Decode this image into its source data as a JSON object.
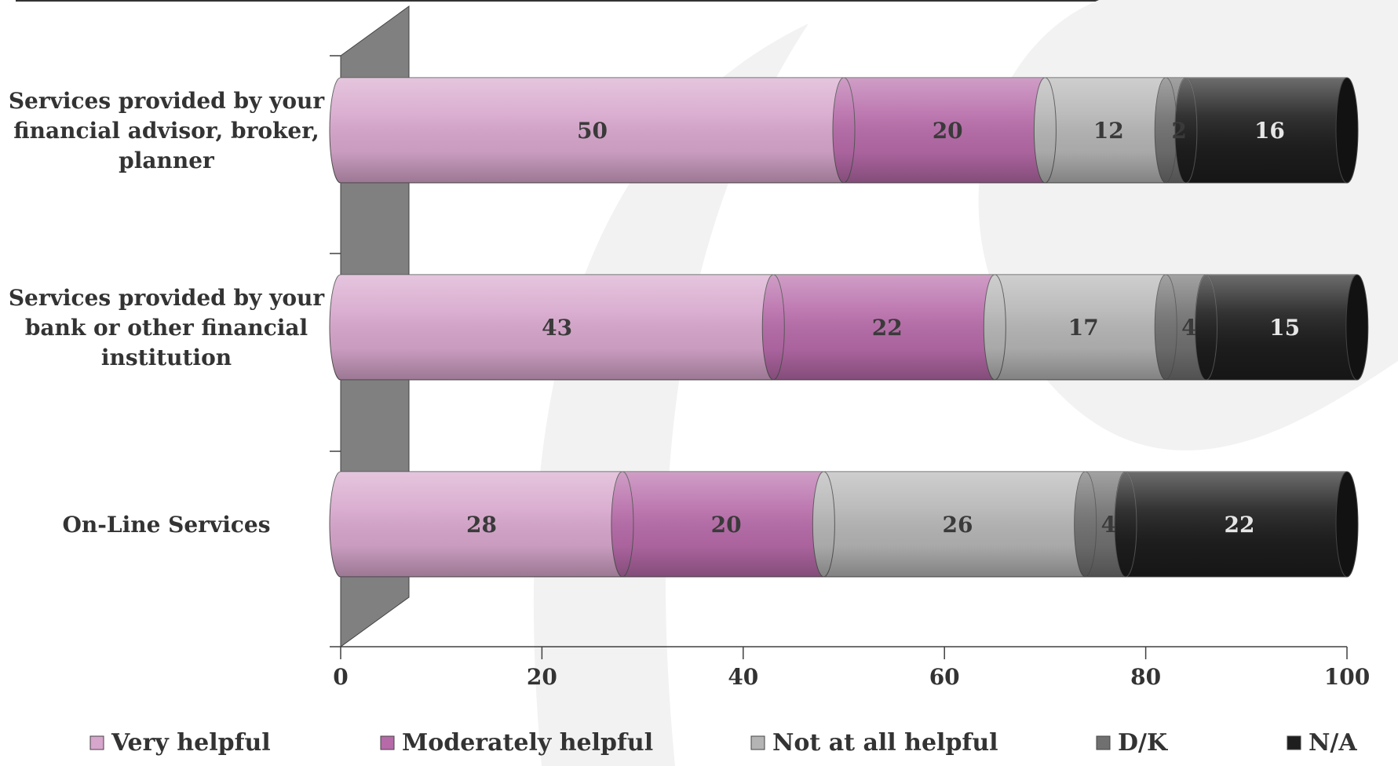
{
  "chart_data": {
    "type": "bar",
    "orientation": "horizontal",
    "stacked": true,
    "title": "",
    "xlabel": "",
    "ylabel": "",
    "xlim": [
      0,
      100
    ],
    "x_ticks": [
      "0",
      "20",
      "40",
      "60",
      "80",
      "100"
    ],
    "legend_position": "bottom",
    "categories": [
      "Services provided by your financial advisor, broker, planner",
      "Services provided by your bank or other financial institution",
      "On-Line Services"
    ],
    "category_lines": [
      [
        "Services provided by your",
        "financial advisor, broker,",
        "planner"
      ],
      [
        "Services provided by your",
        "bank or other financial",
        "institution"
      ],
      [
        "On-Line Services"
      ]
    ],
    "series": [
      {
        "name": "Very helpful",
        "color": "#d7a6cc",
        "values": [
          50,
          43,
          28
        ]
      },
      {
        "name": "Moderately helpful",
        "color": "#b66aa8",
        "values": [
          20,
          22,
          20
        ]
      },
      {
        "name": "Not at all helpful",
        "color": "#b4b4b4",
        "values": [
          12,
          17,
          26
        ]
      },
      {
        "name": "D/K",
        "color": "#707070",
        "values": [
          2,
          4,
          4
        ]
      },
      {
        "name": "N/A",
        "color": "#1e1e1e",
        "values": [
          16,
          15,
          22
        ]
      }
    ]
  }
}
